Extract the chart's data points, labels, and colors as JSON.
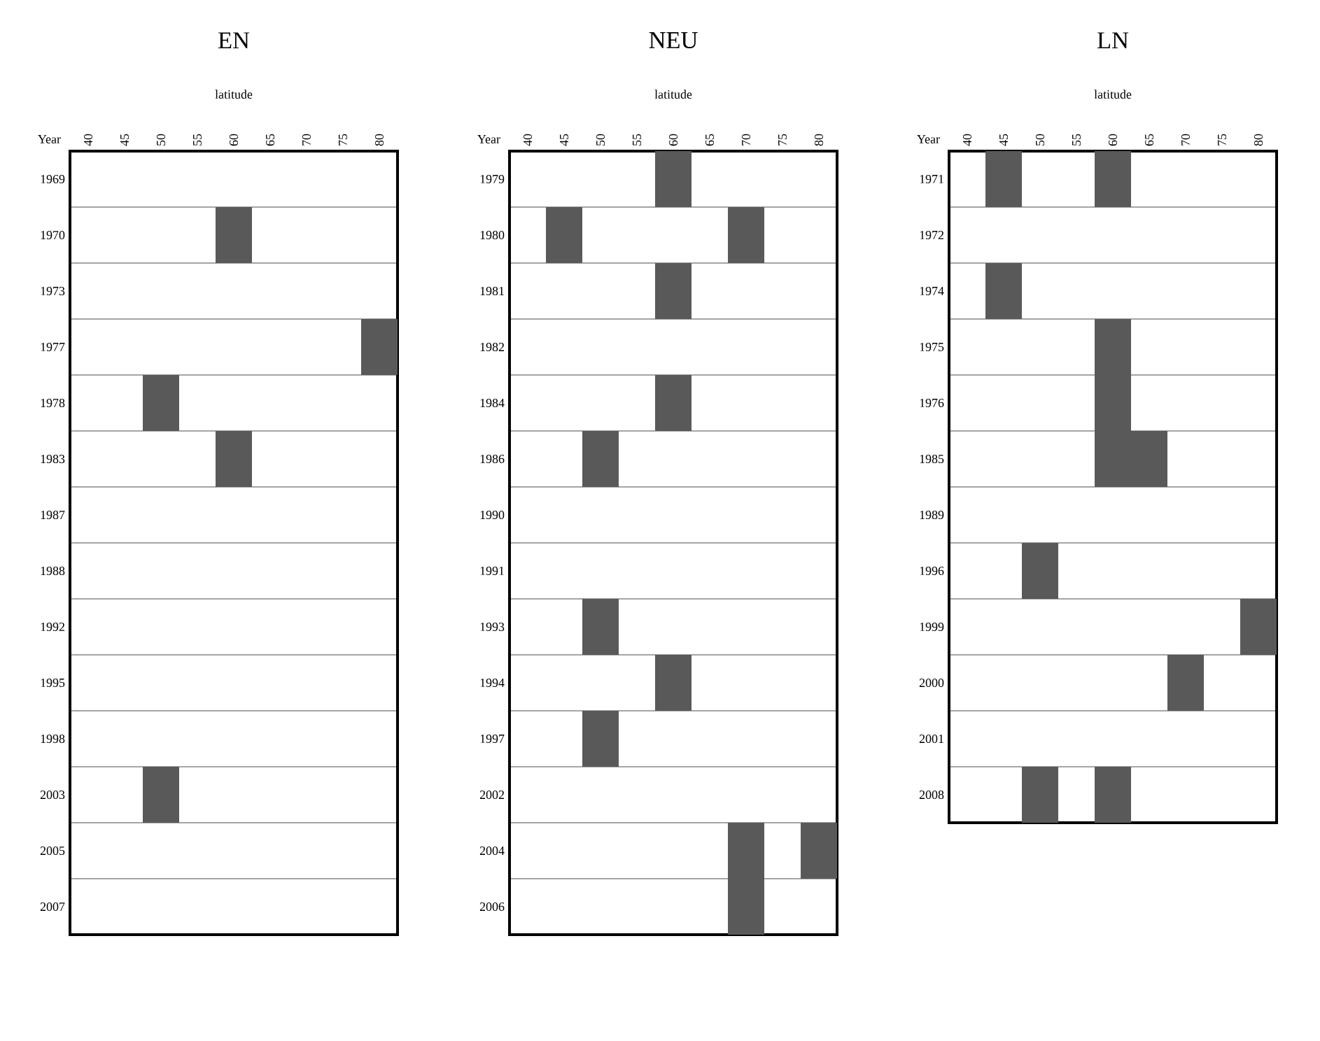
{
  "chart_data": [
    {
      "type": "bar",
      "orientation": "horizontal",
      "title": "EN",
      "xlabel": "latitude",
      "ylabel": "Year",
      "xlim": [
        37.5,
        82.5
      ],
      "xticks": [
        40,
        45,
        50,
        55,
        60,
        65,
        70,
        75,
        80
      ],
      "categories": [
        "1969",
        "1970",
        "1973",
        "1977",
        "1978",
        "1983",
        "1987",
        "1988",
        "1992",
        "1995",
        "1998",
        "2003",
        "2005",
        "2007"
      ],
      "series": [
        {
          "color": "#595959",
          "base": [
            null,
            57.5,
            null,
            77.5,
            47.5,
            57.5,
            null,
            null,
            null,
            null,
            null,
            47.5,
            null,
            null
          ],
          "values": [
            null,
            5,
            null,
            5,
            5,
            5,
            null,
            null,
            null,
            null,
            null,
            5,
            null,
            null
          ]
        }
      ]
    },
    {
      "type": "bar",
      "orientation": "horizontal",
      "title": "NEU",
      "xlabel": "latitude",
      "ylabel": "Year",
      "xlim": [
        37.5,
        82.5
      ],
      "xticks": [
        40,
        45,
        50,
        55,
        60,
        65,
        70,
        75,
        80
      ],
      "categories": [
        "1979",
        "1980",
        "1981",
        "1982",
        "1984",
        "1986",
        "1990",
        "1991",
        "1993",
        "1994",
        "1997",
        "2002",
        "2004",
        "2006"
      ],
      "series": [
        {
          "color": "#595959",
          "base": [
            57.5,
            42.5,
            57.5,
            null,
            57.5,
            47.5,
            null,
            null,
            47.5,
            57.5,
            47.5,
            null,
            67.5,
            67.5
          ],
          "values": [
            5,
            5,
            5,
            null,
            5,
            5,
            null,
            null,
            5,
            5,
            5,
            null,
            5,
            5
          ]
        },
        {
          "color": "#595959",
          "base": [
            null,
            67.5,
            null,
            null,
            null,
            null,
            null,
            null,
            null,
            null,
            null,
            null,
            77.5,
            null
          ],
          "values": [
            null,
            5,
            null,
            null,
            null,
            null,
            null,
            null,
            null,
            null,
            null,
            null,
            5,
            null
          ]
        }
      ]
    },
    {
      "type": "bar",
      "orientation": "horizontal",
      "title": "LN",
      "xlabel": "latitude",
      "ylabel": "Year",
      "xlim": [
        37.5,
        82.5
      ],
      "xticks": [
        40,
        45,
        50,
        55,
        60,
        65,
        70,
        75,
        80
      ],
      "categories": [
        "1971",
        "1972",
        "1974",
        "1975",
        "1976",
        "1985",
        "1989",
        "1996",
        "1999",
        "2000",
        "2001",
        "2008"
      ],
      "series": [
        {
          "color": "#595959",
          "base": [
            42.5,
            null,
            42.5,
            57.5,
            57.5,
            57.5,
            null,
            47.5,
            77.5,
            67.5,
            null,
            47.5
          ],
          "values": [
            5,
            null,
            5,
            5,
            5,
            10,
            null,
            5,
            5,
            5,
            null,
            5
          ]
        },
        {
          "color": "#595959",
          "base": [
            57.5,
            null,
            null,
            null,
            null,
            null,
            null,
            null,
            null,
            null,
            null,
            57.5
          ],
          "values": [
            5,
            null,
            null,
            null,
            null,
            null,
            null,
            null,
            null,
            null,
            null,
            5
          ]
        }
      ]
    }
  ]
}
